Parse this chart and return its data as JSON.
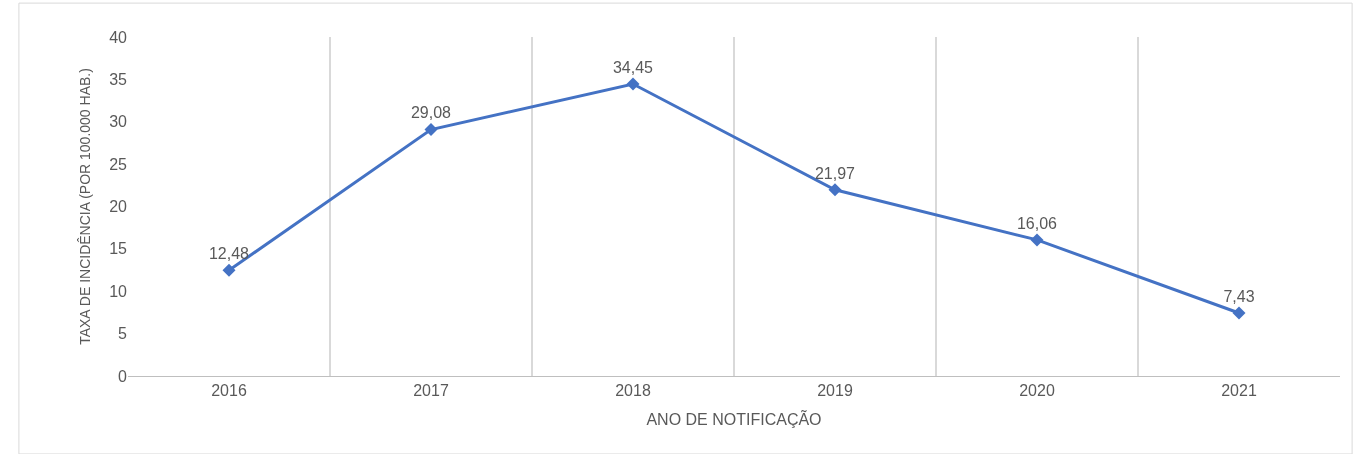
{
  "chart_data": {
    "type": "line",
    "xlabel": "ANO DE NOTIFICAÇÃO",
    "ylabel": "TAXA DE INCIDÊNCIA (POR 100.000 HAB.)",
    "categories": [
      "2016",
      "2017",
      "2018",
      "2019",
      "2020",
      "2021"
    ],
    "series": [
      {
        "color": "#4472c4",
        "values": [
          12.48,
          29.08,
          34.45,
          21.97,
          16.06,
          7.43
        ],
        "value_labels": [
          "12,48",
          "29,08",
          "34,45",
          "21,97",
          "16,06",
          "7,43"
        ]
      }
    ],
    "ylim": [
      0,
      40
    ],
    "yticks": [
      0,
      5,
      10,
      15,
      20,
      25,
      30,
      35,
      40
    ],
    "grid": "x",
    "legend": false,
    "marker": "diamond",
    "line_style": "solid"
  }
}
